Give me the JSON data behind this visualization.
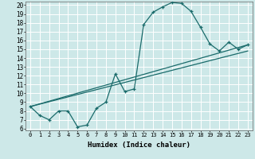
{
  "xlabel": "Humidex (Indice chaleur)",
  "bg_color": "#cde8e8",
  "grid_color": "#ffffff",
  "line_color": "#1a6b6b",
  "xlim": [
    -0.5,
    23.5
  ],
  "ylim": [
    5.8,
    20.4
  ],
  "xticks": [
    0,
    1,
    2,
    3,
    4,
    5,
    6,
    7,
    8,
    9,
    10,
    11,
    12,
    13,
    14,
    15,
    16,
    17,
    18,
    19,
    20,
    21,
    22,
    23
  ],
  "yticks": [
    6,
    7,
    8,
    9,
    10,
    11,
    12,
    13,
    14,
    15,
    16,
    17,
    18,
    19,
    20
  ],
  "curve1_x": [
    0,
    1,
    2,
    3,
    4,
    5,
    6,
    7,
    8,
    9,
    10,
    11,
    12,
    13,
    14,
    15,
    16,
    17,
    18,
    19,
    20,
    21,
    22,
    23
  ],
  "curve1_y": [
    8.5,
    7.5,
    7.0,
    8.0,
    8.0,
    6.2,
    6.4,
    8.3,
    9.0,
    12.2,
    10.2,
    10.5,
    17.8,
    19.2,
    19.8,
    20.3,
    20.2,
    19.3,
    17.5,
    15.6,
    14.8,
    15.8,
    15.0,
    15.5
  ],
  "curve2_x": [
    0,
    23
  ],
  "curve2_y": [
    8.5,
    15.5
  ],
  "curve3_x": [
    0,
    23
  ],
  "curve3_y": [
    8.5,
    14.8
  ],
  "xtick_fontsize": 5.0,
  "ytick_fontsize": 5.5,
  "xlabel_fontsize": 6.5
}
